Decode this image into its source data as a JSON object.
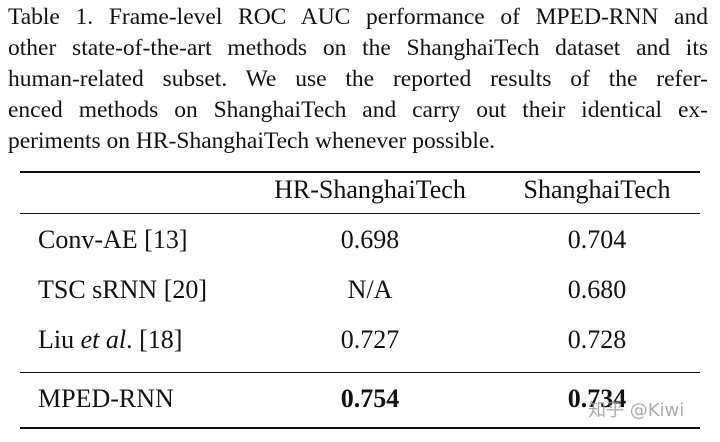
{
  "caption": {
    "lines": [
      "Table 1. Frame-level ROC AUC performance of MPED-RNN and",
      "other state-of-the-art methods on the ShanghaiTech dataset and its",
      "human-related subset.  We use the reported results of the refer-",
      "enced methods on ShanghaiTech and carry out their identical ex-",
      "periments on HR-ShanghaiTech whenever possible."
    ]
  },
  "table": {
    "header": [
      "HR-ShanghaiTech",
      "ShanghaiTech"
    ],
    "rows": [
      {
        "method": [
          "Conv-AE [13]"
        ],
        "values": [
          "0.698",
          "0.704"
        ]
      },
      {
        "method": [
          "TSC sRNN [20]"
        ],
        "values": [
          "N/A",
          "0.680"
        ]
      },
      {
        "method": [
          "Liu ",
          "et al",
          ". [18]"
        ],
        "values": [
          "0.727",
          "0.728"
        ]
      },
      {
        "method": [
          "MPED-RNN"
        ],
        "values": [
          "0.754",
          "0.734"
        ]
      }
    ]
  },
  "watermark": "知乎 @Kiwi"
}
